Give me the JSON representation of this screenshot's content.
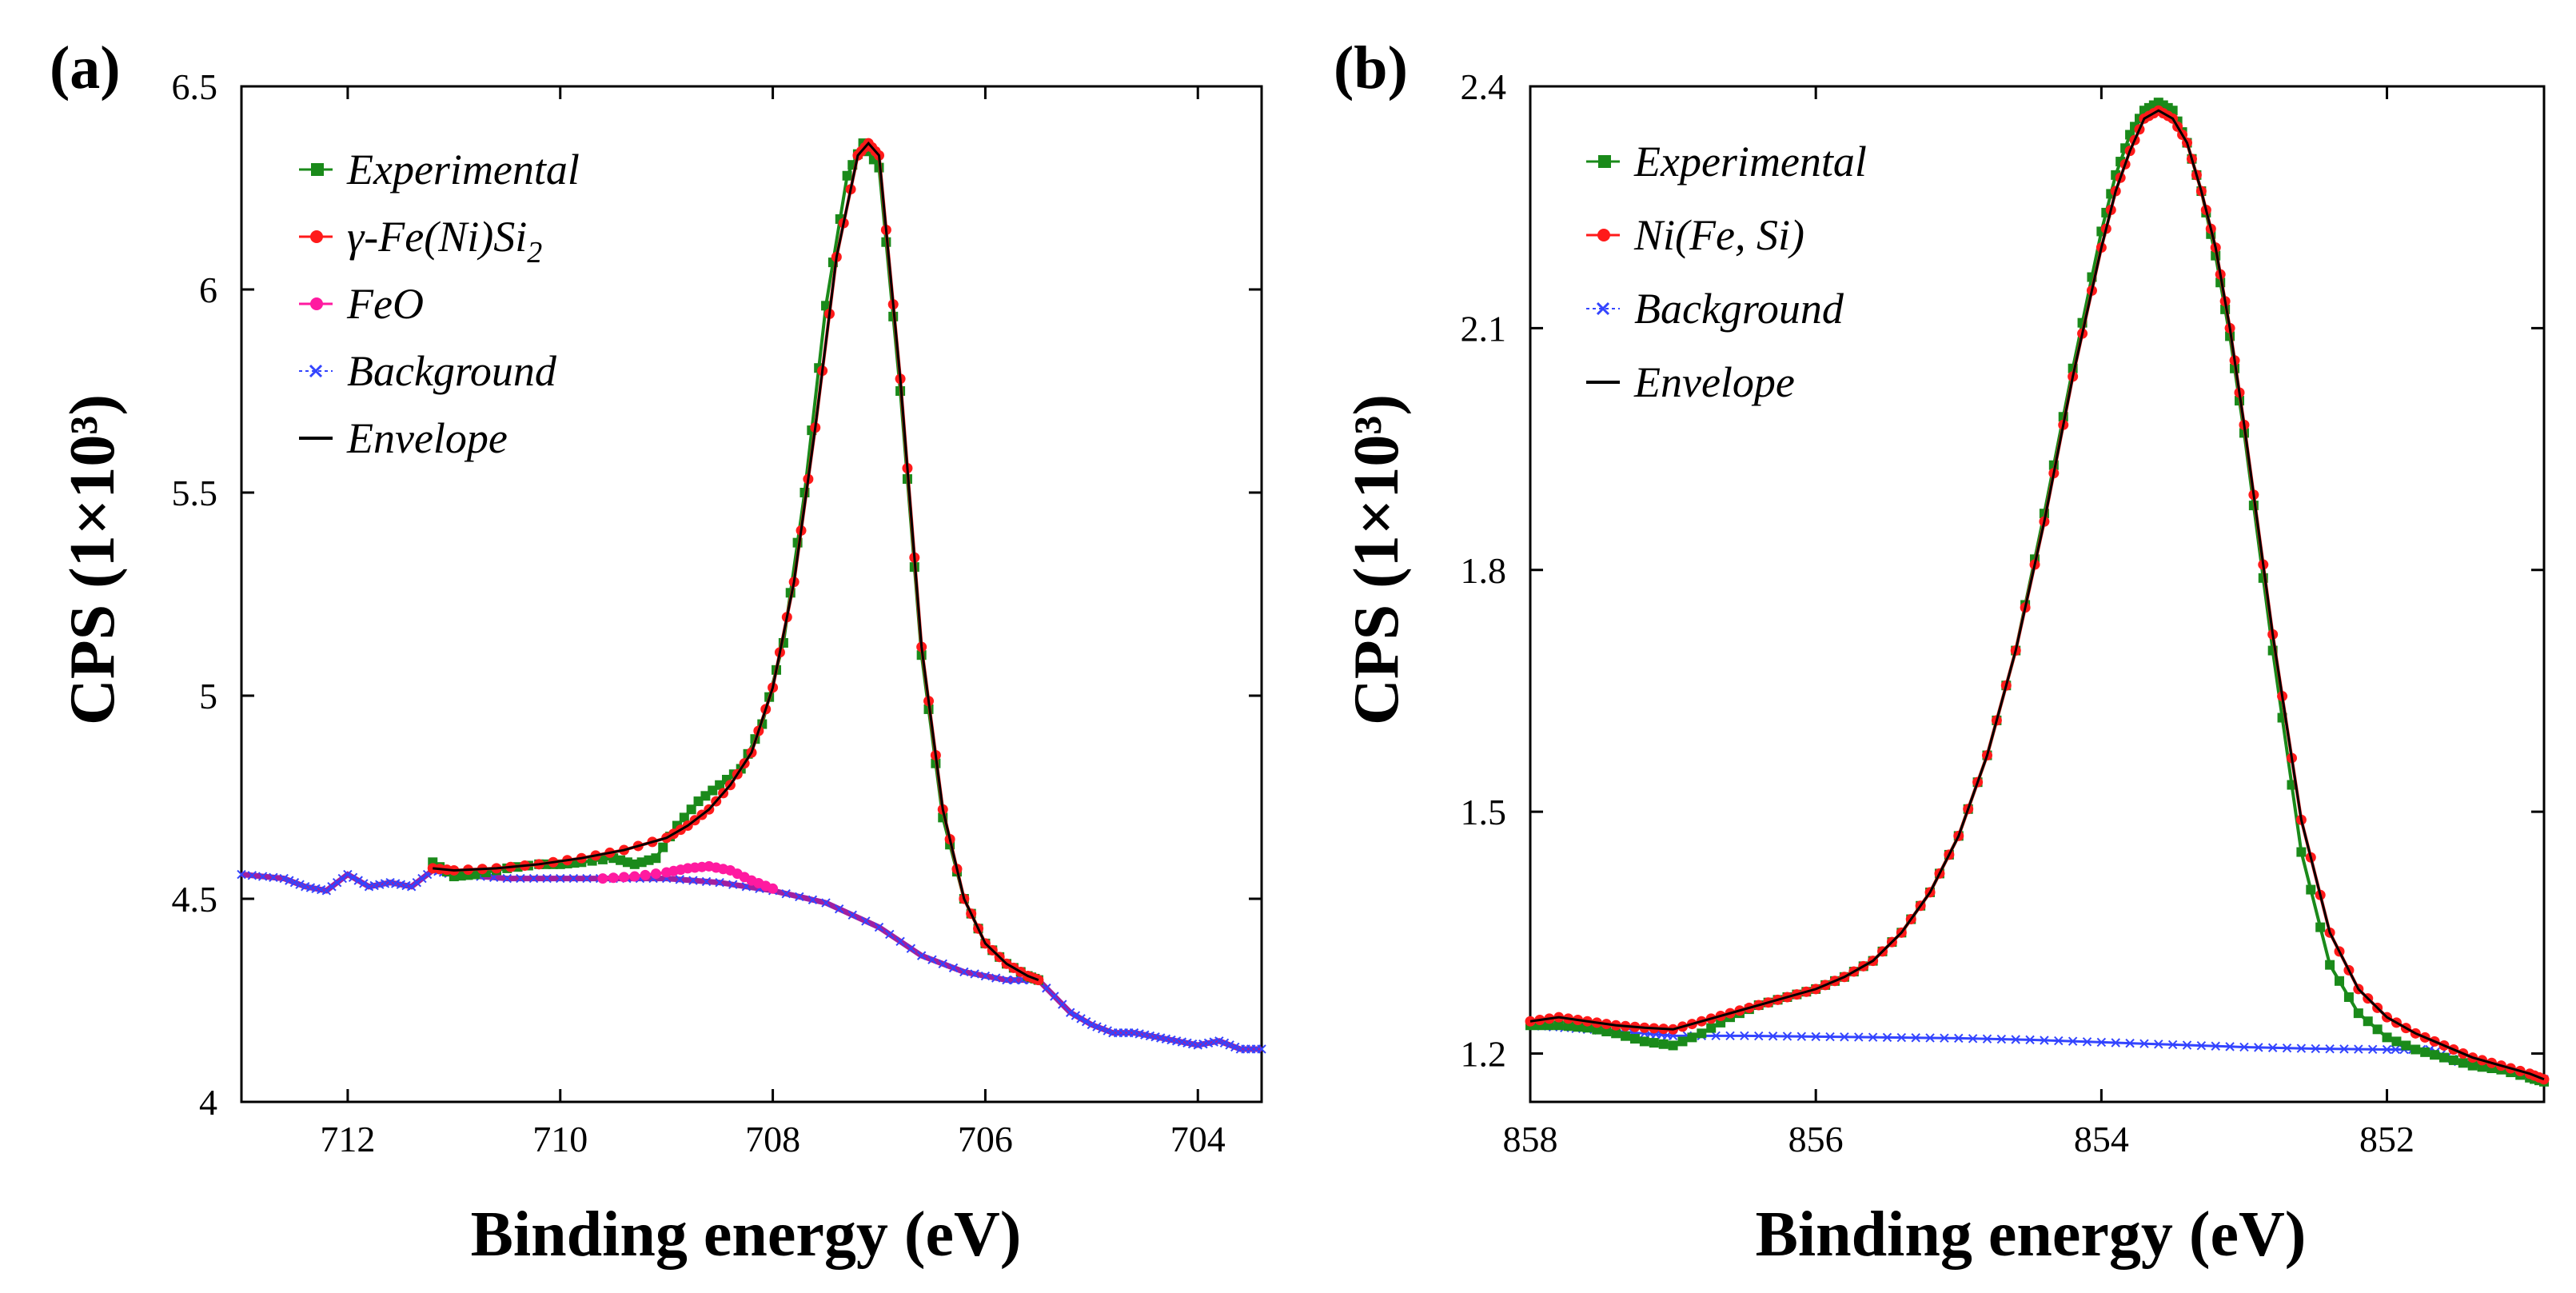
{
  "colors": {
    "experimental": "#1a8a1a",
    "component": "#ff1a1a",
    "feo": "#ff1aa0",
    "background": "#3344ff",
    "envelope": "#000000",
    "overlap": "#a020a0"
  },
  "chart_data": [
    {
      "type": "line",
      "panel_label": "(a)",
      "title": "",
      "xlabel": "Binding energy (eV)",
      "ylabel": "CPS (1×10³)",
      "xlim": [
        713,
        703.4
      ],
      "ylim": [
        4,
        6.5
      ],
      "x_ticks": [
        712,
        710,
        708,
        706,
        704
      ],
      "x_tick_labels": [
        "712",
        "710",
        "708",
        "706",
        "704"
      ],
      "y_ticks": [
        4,
        4.5,
        5,
        5.5,
        6,
        6.5
      ],
      "y_tick_labels": [
        "4",
        "4.5",
        "5",
        "5.5",
        "6",
        "6.5"
      ],
      "legend": [
        {
          "label": "Experimental",
          "key": "experimental",
          "marker": "square"
        },
        {
          "label": "γ-Fe(Ni)Si",
          "sub": "2",
          "key": "component",
          "marker": "circle"
        },
        {
          "label": "FeO",
          "key": "feo",
          "marker": "circle"
        },
        {
          "label": "Background",
          "key": "background",
          "marker": "x"
        },
        {
          "label": "Envelope",
          "key": "envelope",
          "marker": "line"
        }
      ],
      "series": [
        {
          "name": "Background",
          "key": "background",
          "x": [
            713,
            712.6,
            712.4,
            712.2,
            712.0,
            711.8,
            711.6,
            711.4,
            711.2,
            711.0,
            710.5,
            710.0,
            709.5,
            709.0,
            708.5,
            708.0,
            707.5,
            707.0,
            706.6,
            706.2,
            705.8,
            705.5,
            705.2,
            705.0,
            704.8,
            704.6,
            704.4,
            704.2,
            704.0,
            703.8,
            703.6,
            703.4
          ],
          "y": [
            4.56,
            4.55,
            4.53,
            4.52,
            4.56,
            4.53,
            4.54,
            4.53,
            4.57,
            4.56,
            4.55,
            4.55,
            4.55,
            4.55,
            4.54,
            4.52,
            4.49,
            4.43,
            4.36,
            4.32,
            4.3,
            4.3,
            4.22,
            4.19,
            4.17,
            4.17,
            4.16,
            4.15,
            4.14,
            4.15,
            4.13,
            4.13
          ]
        },
        {
          "name": "FeO",
          "key": "feo",
          "x": [
            709.6,
            709.3,
            709.0,
            708.8,
            708.6,
            708.4,
            708.2,
            708.0
          ],
          "y": [
            4.55,
            4.555,
            4.565,
            4.575,
            4.58,
            4.57,
            4.545,
            4.525
          ]
        },
        {
          "name": "Experimental",
          "key": "experimental",
          "x": [
            711.2,
            711.0,
            710.8,
            710.5,
            710.2,
            710.0,
            709.8,
            709.5,
            709.3,
            709.1,
            708.9,
            708.7,
            708.5,
            708.3,
            708.1,
            707.9,
            707.7,
            707.5,
            707.3,
            707.15,
            707.0,
            706.8,
            706.6,
            706.4,
            706.2,
            706.0,
            705.8,
            705.6,
            705.5
          ],
          "y": [
            4.59,
            4.555,
            4.56,
            4.575,
            4.585,
            4.585,
            4.59,
            4.6,
            4.585,
            4.6,
            4.68,
            4.74,
            4.78,
            4.82,
            4.93,
            5.13,
            5.5,
            5.96,
            6.28,
            6.36,
            6.3,
            5.75,
            5.1,
            4.7,
            4.5,
            4.39,
            4.34,
            4.31,
            4.3
          ]
        },
        {
          "name": "γ-Fe(Ni)Si2",
          "key": "component",
          "x": [
            711.2,
            711.0,
            710.6,
            710.2,
            709.8,
            709.4,
            709.0,
            708.8,
            708.6,
            708.4,
            708.2,
            708.0,
            707.8,
            707.6,
            707.4,
            707.2,
            707.1,
            707.0,
            706.8,
            706.6,
            706.4,
            706.2,
            706.0,
            705.8,
            705.6,
            705.5
          ],
          "y": [
            4.575,
            4.57,
            4.575,
            4.585,
            4.6,
            4.62,
            4.65,
            4.68,
            4.72,
            4.78,
            4.86,
            5.02,
            5.28,
            5.66,
            6.08,
            6.33,
            6.36,
            6.33,
            5.78,
            5.12,
            4.72,
            4.5,
            4.39,
            4.34,
            4.31,
            4.3
          ]
        },
        {
          "name": "Envelope",
          "key": "envelope",
          "x": [
            711.2,
            711.0,
            710.6,
            710.2,
            709.8,
            709.4,
            709.0,
            708.8,
            708.6,
            708.4,
            708.2,
            708.0,
            707.8,
            707.6,
            707.4,
            707.2,
            707.1,
            707.0,
            706.8,
            706.6,
            706.4,
            706.2,
            706.0,
            705.8,
            705.6,
            705.5
          ],
          "y": [
            4.575,
            4.57,
            4.575,
            4.585,
            4.6,
            4.62,
            4.65,
            4.68,
            4.72,
            4.78,
            4.86,
            5.02,
            5.28,
            5.66,
            6.08,
            6.33,
            6.36,
            6.33,
            5.78,
            5.12,
            4.72,
            4.5,
            4.39,
            4.34,
            4.31,
            4.3
          ]
        }
      ]
    },
    {
      "type": "line",
      "panel_label": "(b)",
      "title": "",
      "xlabel": "Binding energy (eV)",
      "ylabel": "CPS (1×10³)",
      "xlim": [
        858,
        850.9
      ],
      "ylim": [
        1.14,
        2.4
      ],
      "x_ticks": [
        858,
        856,
        854,
        852
      ],
      "x_tick_labels": [
        "858",
        "856",
        "854",
        "852"
      ],
      "y_ticks": [
        1.2,
        1.5,
        1.8,
        2.1,
        2.4
      ],
      "y_tick_labels": [
        "1.2",
        "1.5",
        "1.8",
        "2.1",
        "2.4"
      ],
      "legend": [
        {
          "label": "Experimental",
          "key": "experimental",
          "marker": "square"
        },
        {
          "label": "Ni(Fe, Si)",
          "key": "component",
          "marker": "circle"
        },
        {
          "label": "Background",
          "key": "background",
          "marker": "x"
        },
        {
          "label": "Envelope",
          "key": "envelope",
          "marker": "line"
        }
      ],
      "series": [
        {
          "name": "Background",
          "key": "background",
          "x": [
            858.0,
            857.6,
            857.2,
            857.0,
            856.5,
            856.0,
            855.5,
            855.0,
            854.5,
            854.0,
            853.5,
            853.0,
            852.5,
            852.0,
            851.7,
            851.5,
            851.2,
            850.9
          ],
          "y": [
            1.235,
            1.23,
            1.225,
            1.222,
            1.222,
            1.221,
            1.22,
            1.219,
            1.217,
            1.214,
            1.211,
            1.208,
            1.206,
            1.205,
            1.205,
            1.19,
            1.182,
            1.168
          ]
        },
        {
          "name": "Experimental",
          "key": "experimental",
          "x": [
            858.0,
            857.8,
            857.6,
            857.4,
            857.2,
            857.0,
            856.8,
            856.6,
            856.4,
            856.2,
            856.0,
            855.8,
            855.6,
            855.4,
            855.2,
            855.0,
            854.8,
            854.6,
            854.4,
            854.2,
            854.0,
            853.9,
            853.8,
            853.7,
            853.6,
            853.5,
            853.4,
            853.3,
            853.2,
            853.1,
            853.0,
            852.8,
            852.6,
            852.4,
            852.2,
            852.0,
            851.8,
            851.6,
            851.4,
            851.2,
            851.0,
            850.9
          ],
          "y": [
            1.235,
            1.235,
            1.232,
            1.225,
            1.215,
            1.21,
            1.225,
            1.245,
            1.26,
            1.27,
            1.28,
            1.295,
            1.315,
            1.35,
            1.4,
            1.47,
            1.57,
            1.7,
            1.87,
            2.05,
            2.22,
            2.29,
            2.34,
            2.37,
            2.38,
            2.37,
            2.33,
            2.27,
            2.19,
            2.09,
            1.97,
            1.7,
            1.45,
            1.31,
            1.25,
            1.22,
            1.205,
            1.195,
            1.185,
            1.18,
            1.17,
            1.165
          ]
        },
        {
          "name": "Ni(Fe, Si)",
          "key": "component",
          "x": [
            858.0,
            857.8,
            857.6,
            857.4,
            857.2,
            857.0,
            856.8,
            856.6,
            856.4,
            856.2,
            856.0,
            855.8,
            855.6,
            855.4,
            855.2,
            855.0,
            854.8,
            854.6,
            854.4,
            854.2,
            854.0,
            853.9,
            853.8,
            853.7,
            853.6,
            853.5,
            853.4,
            853.3,
            853.2,
            853.1,
            853.0,
            852.8,
            852.6,
            852.4,
            852.2,
            852.0,
            851.8,
            851.6,
            851.4,
            851.2,
            851.0,
            850.9
          ],
          "y": [
            1.24,
            1.245,
            1.24,
            1.235,
            1.232,
            1.23,
            1.24,
            1.25,
            1.26,
            1.27,
            1.28,
            1.295,
            1.315,
            1.35,
            1.4,
            1.47,
            1.57,
            1.7,
            1.86,
            2.04,
            2.2,
            2.27,
            2.32,
            2.36,
            2.37,
            2.36,
            2.33,
            2.27,
            2.2,
            2.1,
            1.98,
            1.72,
            1.49,
            1.35,
            1.28,
            1.245,
            1.225,
            1.21,
            1.195,
            1.185,
            1.175,
            1.168
          ]
        },
        {
          "name": "Envelope",
          "key": "envelope",
          "x": [
            858.0,
            857.8,
            857.6,
            857.4,
            857.2,
            857.0,
            856.8,
            856.6,
            856.4,
            856.2,
            856.0,
            855.8,
            855.6,
            855.4,
            855.2,
            855.0,
            854.8,
            854.6,
            854.4,
            854.2,
            854.0,
            853.9,
            853.8,
            853.7,
            853.6,
            853.5,
            853.4,
            853.3,
            853.2,
            853.1,
            853.0,
            852.8,
            852.6,
            852.4,
            852.2,
            852.0,
            851.8,
            851.6,
            851.4,
            851.2,
            851.0,
            850.9
          ],
          "y": [
            1.24,
            1.245,
            1.24,
            1.235,
            1.232,
            1.23,
            1.24,
            1.25,
            1.26,
            1.27,
            1.28,
            1.295,
            1.315,
            1.35,
            1.4,
            1.47,
            1.57,
            1.7,
            1.86,
            2.04,
            2.2,
            2.27,
            2.32,
            2.36,
            2.37,
            2.36,
            2.33,
            2.27,
            2.2,
            2.1,
            1.98,
            1.72,
            1.49,
            1.35,
            1.28,
            1.245,
            1.225,
            1.21,
            1.195,
            1.185,
            1.175,
            1.168
          ]
        }
      ]
    }
  ]
}
